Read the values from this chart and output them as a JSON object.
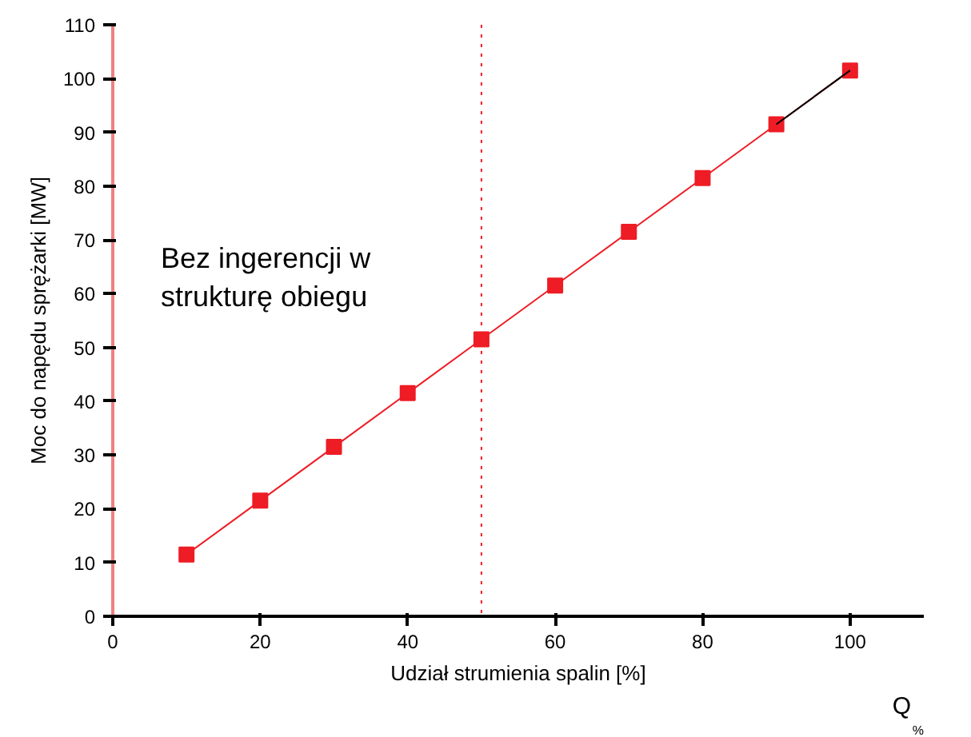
{
  "chart_data": {
    "type": "line",
    "xlabel": "Udział strumienia spalin [%]",
    "ylabel": "Moc do napędu sprężarki [MW]",
    "x": [
      10,
      20,
      30,
      40,
      50,
      60,
      70,
      80,
      90,
      100
    ],
    "series": [
      {
        "color": "#ee1c25",
        "values": [
          11.5,
          21.5,
          31.5,
          41.5,
          51.5,
          61.5,
          71.5,
          81.5,
          91.5,
          101.5
        ],
        "marker": "square"
      },
      {
        "color": "#000000",
        "x": [
          90,
          100
        ],
        "values": [
          91.5,
          101.5
        ],
        "marker": "none"
      }
    ],
    "xlim": [
      0,
      110
    ],
    "ylim": [
      0,
      110
    ],
    "xticks": [
      0,
      20,
      40,
      60,
      80,
      100
    ],
    "yticks": [
      0,
      10,
      20,
      30,
      40,
      50,
      60,
      70,
      80,
      90,
      100,
      110
    ],
    "ref_lines": [
      {
        "axis": "x",
        "value": 50,
        "color": "#ee1c25",
        "line_style": "dotted"
      }
    ],
    "annotations": [
      "Bez ingerencji w\nstrukturę obiegu",
      "Q$_{%}$"
    ],
    "grid": false
  }
}
